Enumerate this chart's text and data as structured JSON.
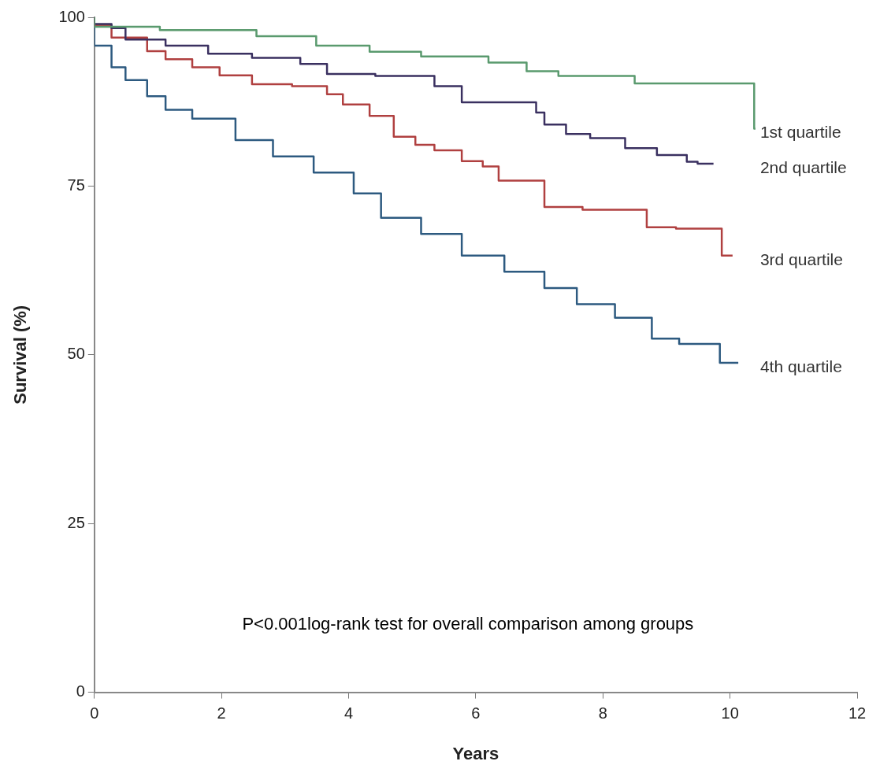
{
  "chart_data": {
    "type": "step",
    "xlabel": "Years",
    "ylabel": "Survival (%)",
    "xlim": [
      0,
      12
    ],
    "xticks": [
      0,
      2,
      4,
      6,
      8,
      10,
      12
    ],
    "ylim": [
      0,
      100
    ],
    "yticks": [
      0,
      25,
      50,
      75,
      100
    ],
    "grid": false,
    "legend": false,
    "marker": "none",
    "line_style": "solid",
    "annotations": [
      "P<0.001log-rank test for overall comparison among groups"
    ],
    "series": [
      {
        "name": "1st quartile",
        "color": "#5a9a6e",
        "x": [
          0,
          1.03,
          2.55,
          3.49,
          4.33,
          5.14,
          6.2,
          6.8,
          7.3,
          8.5,
          8.77,
          10.38,
          10.4
        ],
        "values": [
          100,
          98.6,
          98.1,
          97.2,
          95.8,
          94.9,
          94.2,
          93.3,
          92,
          91.3,
          90.2,
          90.2,
          83.5
        ]
      },
      {
        "name": "2nd quartile",
        "color": "#3a3060",
        "x": [
          0,
          0.27,
          0.49,
          1.12,
          1.79,
          2.48,
          3.24,
          3.66,
          4.42,
          5.35,
          5.78,
          6.95,
          7.08,
          7.42,
          7.8,
          8.35,
          8.85,
          9.32,
          9.49,
          9.74
        ],
        "values": [
          100,
          99,
          98.4,
          96.7,
          95.8,
          94.6,
          94,
          93.1,
          91.6,
          91.3,
          89.8,
          87.4,
          85.9,
          84.1,
          82.7,
          82.1,
          80.6,
          79.6,
          78.6,
          78.3
        ]
      },
      {
        "name": "3rd quartile",
        "color": "#b04040",
        "x": [
          0,
          0.27,
          0.83,
          1.12,
          1.54,
          1.97,
          2.48,
          3.11,
          3.66,
          3.91,
          4.33,
          4.71,
          5.05,
          5.35,
          5.78,
          6.11,
          6.36,
          7.08,
          7.68,
          8.69,
          9.15,
          9.87,
          10.04
        ],
        "values": [
          100,
          98.8,
          97,
          95,
          93.8,
          92.6,
          91.4,
          90.1,
          89.8,
          88.6,
          87.1,
          85.4,
          82.3,
          81.1,
          80.3,
          78.7,
          77.9,
          75.8,
          71.9,
          71.5,
          68.9,
          68.7,
          64.7
        ]
      },
      {
        "name": "4th quartile",
        "color": "#2d5a80",
        "x": [
          0,
          0.27,
          0.49,
          0.83,
          1.12,
          1.54,
          2.22,
          2.81,
          3.45,
          4.08,
          4.51,
          5.14,
          5.78,
          6.45,
          7.08,
          7.59,
          8.19,
          8.77,
          9.2,
          9.84,
          10.13
        ],
        "values": [
          100,
          95.8,
          92.6,
          90.7,
          88.3,
          86.3,
          85,
          81.8,
          79.4,
          77,
          73.9,
          70.3,
          67.9,
          64.7,
          62.3,
          59.9,
          57.5,
          55.5,
          52.4,
          51.6,
          48.8
        ]
      }
    ]
  }
}
